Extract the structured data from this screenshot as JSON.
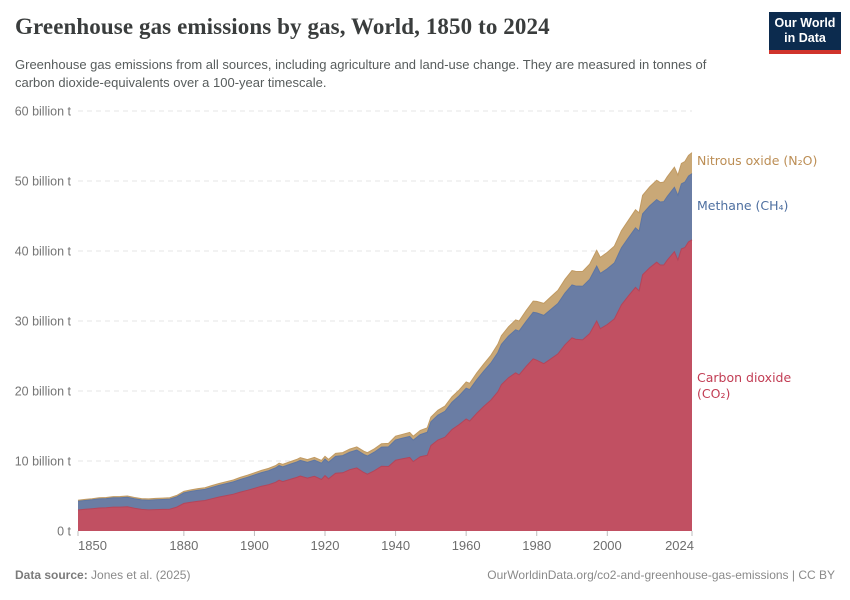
{
  "header": {
    "title": "Greenhouse gas emissions by gas, World, 1850 to 2024",
    "subtitle": "Greenhouse gas emissions from all sources, including agriculture and land-use change. They are measured in tonnes of carbon dioxide-equivalents over a 100-year timescale.",
    "logo": {
      "line1": "Our World",
      "line2": "in Data",
      "bg_color": "#0C2B4E",
      "accent_color": "#D0342C"
    }
  },
  "footer": {
    "source_label": "Data source:",
    "source_value": "Jones et al. (2025)",
    "citation": "OurWorldinData.org/co2-and-greenhouse-gas-emissions | CC BY"
  },
  "chart_data": {
    "type": "area",
    "stacked": true,
    "title": "Greenhouse gas emissions by gas, World, 1850 to 2024",
    "unit": "tonnes of CO₂-equivalents (100-year timescale)",
    "grid": "horizontal-dashed",
    "legend_position": "right-of-plot",
    "xlim": [
      1850,
      2024
    ],
    "ylim": [
      0,
      60
    ],
    "y_ticks": [
      {
        "value": 0,
        "label": "0 t"
      },
      {
        "value": 10,
        "label": "10 billion t"
      },
      {
        "value": 20,
        "label": "20 billion t"
      },
      {
        "value": 30,
        "label": "30 billion t"
      },
      {
        "value": 40,
        "label": "40 billion t"
      },
      {
        "value": 50,
        "label": "50 billion t"
      },
      {
        "value": 60,
        "label": "60 billion t"
      }
    ],
    "x_ticks": [
      1850,
      1880,
      1900,
      1920,
      1940,
      1960,
      1980,
      2000,
      2024
    ],
    "x": [
      1850,
      1852,
      1854,
      1856,
      1858,
      1860,
      1862,
      1864,
      1866,
      1868,
      1870,
      1872,
      1874,
      1876,
      1878,
      1880,
      1882,
      1884,
      1886,
      1888,
      1890,
      1892,
      1894,
      1896,
      1898,
      1900,
      1902,
      1904,
      1906,
      1907,
      1908,
      1910,
      1912,
      1913,
      1915,
      1917,
      1919,
      1920,
      1921,
      1923,
      1925,
      1927,
      1929,
      1931,
      1932,
      1934,
      1936,
      1938,
      1940,
      1942,
      1944,
      1945,
      1947,
      1949,
      1950,
      1952,
      1954,
      1956,
      1958,
      1960,
      1961,
      1963,
      1965,
      1967,
      1969,
      1970,
      1972,
      1974,
      1975,
      1977,
      1979,
      1980,
      1982,
      1984,
      1986,
      1988,
      1990,
      1991,
      1993,
      1995,
      1997,
      1998,
      2000,
      2002,
      2004,
      2006,
      2008,
      2009,
      2010,
      2012,
      2014,
      2015,
      2016,
      2017,
      2019,
      2020,
      2021,
      2022,
      2023,
      2024
    ],
    "series": [
      {
        "name": "Carbon dioxide (CO₂)",
        "fill_color": "#C15062",
        "line_color": "#B4455A",
        "label_color": "#C23D54",
        "values": [
          3.0,
          3.1,
          3.18,
          3.28,
          3.32,
          3.42,
          3.42,
          3.47,
          3.25,
          3.08,
          3.02,
          3.06,
          3.08,
          3.12,
          3.42,
          3.95,
          4.12,
          4.26,
          4.36,
          4.62,
          4.86,
          5.06,
          5.26,
          5.56,
          5.82,
          6.1,
          6.4,
          6.62,
          6.96,
          7.26,
          7.06,
          7.36,
          7.66,
          7.86,
          7.56,
          7.82,
          7.36,
          7.92,
          7.46,
          8.26,
          8.32,
          8.76,
          9.02,
          8.36,
          8.12,
          8.62,
          9.26,
          9.22,
          10.12,
          10.32,
          10.52,
          9.92,
          10.62,
          10.82,
          12.2,
          13.0,
          13.4,
          14.5,
          15.2,
          16.0,
          15.7,
          16.8,
          17.8,
          18.7,
          19.9,
          20.9,
          21.9,
          22.6,
          22.3,
          23.5,
          24.6,
          24.4,
          23.9,
          24.6,
          25.3,
          26.6,
          27.6,
          27.4,
          27.3,
          28.2,
          30.0,
          28.9,
          29.5,
          30.3,
          32.3,
          33.6,
          34.8,
          34.3,
          36.6,
          37.6,
          38.4,
          38.0,
          38.0,
          38.7,
          39.9,
          38.7,
          40.3,
          40.5,
          41.3,
          41.6
        ]
      },
      {
        "name": "Methane (CH₄)",
        "fill_color": "#6A7DA4",
        "line_color": "#5F76A2",
        "label_color": "#4E6FA0",
        "values": [
          1.25,
          1.26,
          1.28,
          1.3,
          1.31,
          1.33,
          1.34,
          1.35,
          1.36,
          1.37,
          1.38,
          1.4,
          1.42,
          1.44,
          1.46,
          1.5,
          1.53,
          1.56,
          1.59,
          1.63,
          1.67,
          1.71,
          1.75,
          1.8,
          1.85,
          1.9,
          1.95,
          2.0,
          2.05,
          2.08,
          2.1,
          2.15,
          2.2,
          2.23,
          2.26,
          2.3,
          2.33,
          2.35,
          2.36,
          2.4,
          2.45,
          2.5,
          2.55,
          2.58,
          2.6,
          2.65,
          2.72,
          2.8,
          2.9,
          2.95,
          3.0,
          3.05,
          3.15,
          3.3,
          3.4,
          3.55,
          3.7,
          3.9,
          4.1,
          4.4,
          4.5,
          4.8,
          5.05,
          5.3,
          5.6,
          5.75,
          5.95,
          6.15,
          6.25,
          6.45,
          6.65,
          6.75,
          6.9,
          7.05,
          7.2,
          7.4,
          7.55,
          7.6,
          7.65,
          7.75,
          7.85,
          7.9,
          7.95,
          8.0,
          8.15,
          8.3,
          8.5,
          8.55,
          8.7,
          8.85,
          8.95,
          9.0,
          9.05,
          9.1,
          9.2,
          9.25,
          9.3,
          9.35,
          9.4,
          9.45
        ]
      },
      {
        "name": "Nitrous oxide (N₂O)",
        "fill_color": "#C9A877",
        "line_color": "#C19A62",
        "label_color": "#BC8E55",
        "values": [
          0.14,
          0.15,
          0.15,
          0.16,
          0.16,
          0.17,
          0.17,
          0.18,
          0.18,
          0.18,
          0.19,
          0.19,
          0.2,
          0.2,
          0.21,
          0.22,
          0.22,
          0.23,
          0.24,
          0.25,
          0.26,
          0.27,
          0.28,
          0.29,
          0.3,
          0.31,
          0.32,
          0.33,
          0.34,
          0.35,
          0.35,
          0.36,
          0.37,
          0.38,
          0.38,
          0.39,
          0.4,
          0.4,
          0.41,
          0.42,
          0.43,
          0.44,
          0.45,
          0.46,
          0.46,
          0.47,
          0.48,
          0.5,
          0.52,
          0.54,
          0.56,
          0.57,
          0.6,
          0.63,
          0.66,
          0.7,
          0.74,
          0.78,
          0.83,
          0.88,
          0.9,
          0.95,
          1.02,
          1.1,
          1.18,
          1.25,
          1.32,
          1.4,
          1.45,
          1.52,
          1.6,
          1.65,
          1.72,
          1.8,
          1.87,
          1.95,
          2.05,
          2.08,
          2.12,
          2.18,
          2.25,
          2.28,
          2.35,
          2.4,
          2.45,
          2.5,
          2.58,
          2.6,
          2.65,
          2.7,
          2.75,
          2.77,
          2.79,
          2.82,
          2.87,
          2.88,
          2.9,
          2.93,
          2.96,
          3.0
        ]
      }
    ]
  }
}
